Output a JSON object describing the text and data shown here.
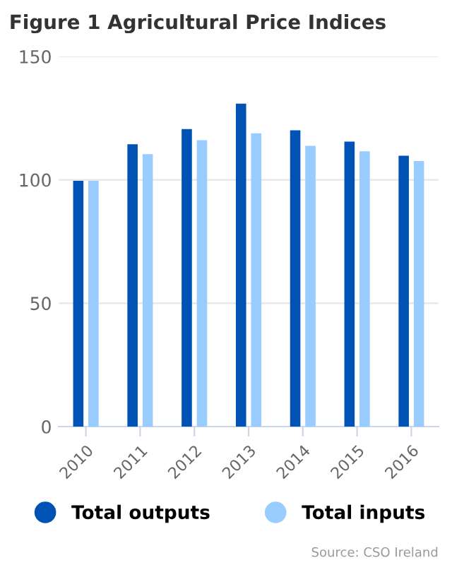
{
  "chart_data": {
    "type": "bar",
    "title": "Figure 1 Agricultural Price Indices",
    "categories": [
      "2010",
      "2011",
      "2012",
      "2013",
      "2014",
      "2015",
      "2016"
    ],
    "series": [
      {
        "name": "Total outputs",
        "color": "#0052b4",
        "values": [
          99.6,
          114.4,
          120.6,
          130.9,
          120.1,
          115.5,
          109.8
        ]
      },
      {
        "name": "Total inputs",
        "color": "#99ccff",
        "values": [
          99.6,
          110.4,
          116.1,
          118.9,
          113.8,
          111.6,
          107.6
        ]
      }
    ],
    "ylim": [
      0,
      150
    ],
    "yticks": [
      0,
      50,
      100,
      150
    ],
    "grid": "y",
    "legend": "bottom",
    "annotations": [
      "Source: CSO Ireland"
    ]
  }
}
